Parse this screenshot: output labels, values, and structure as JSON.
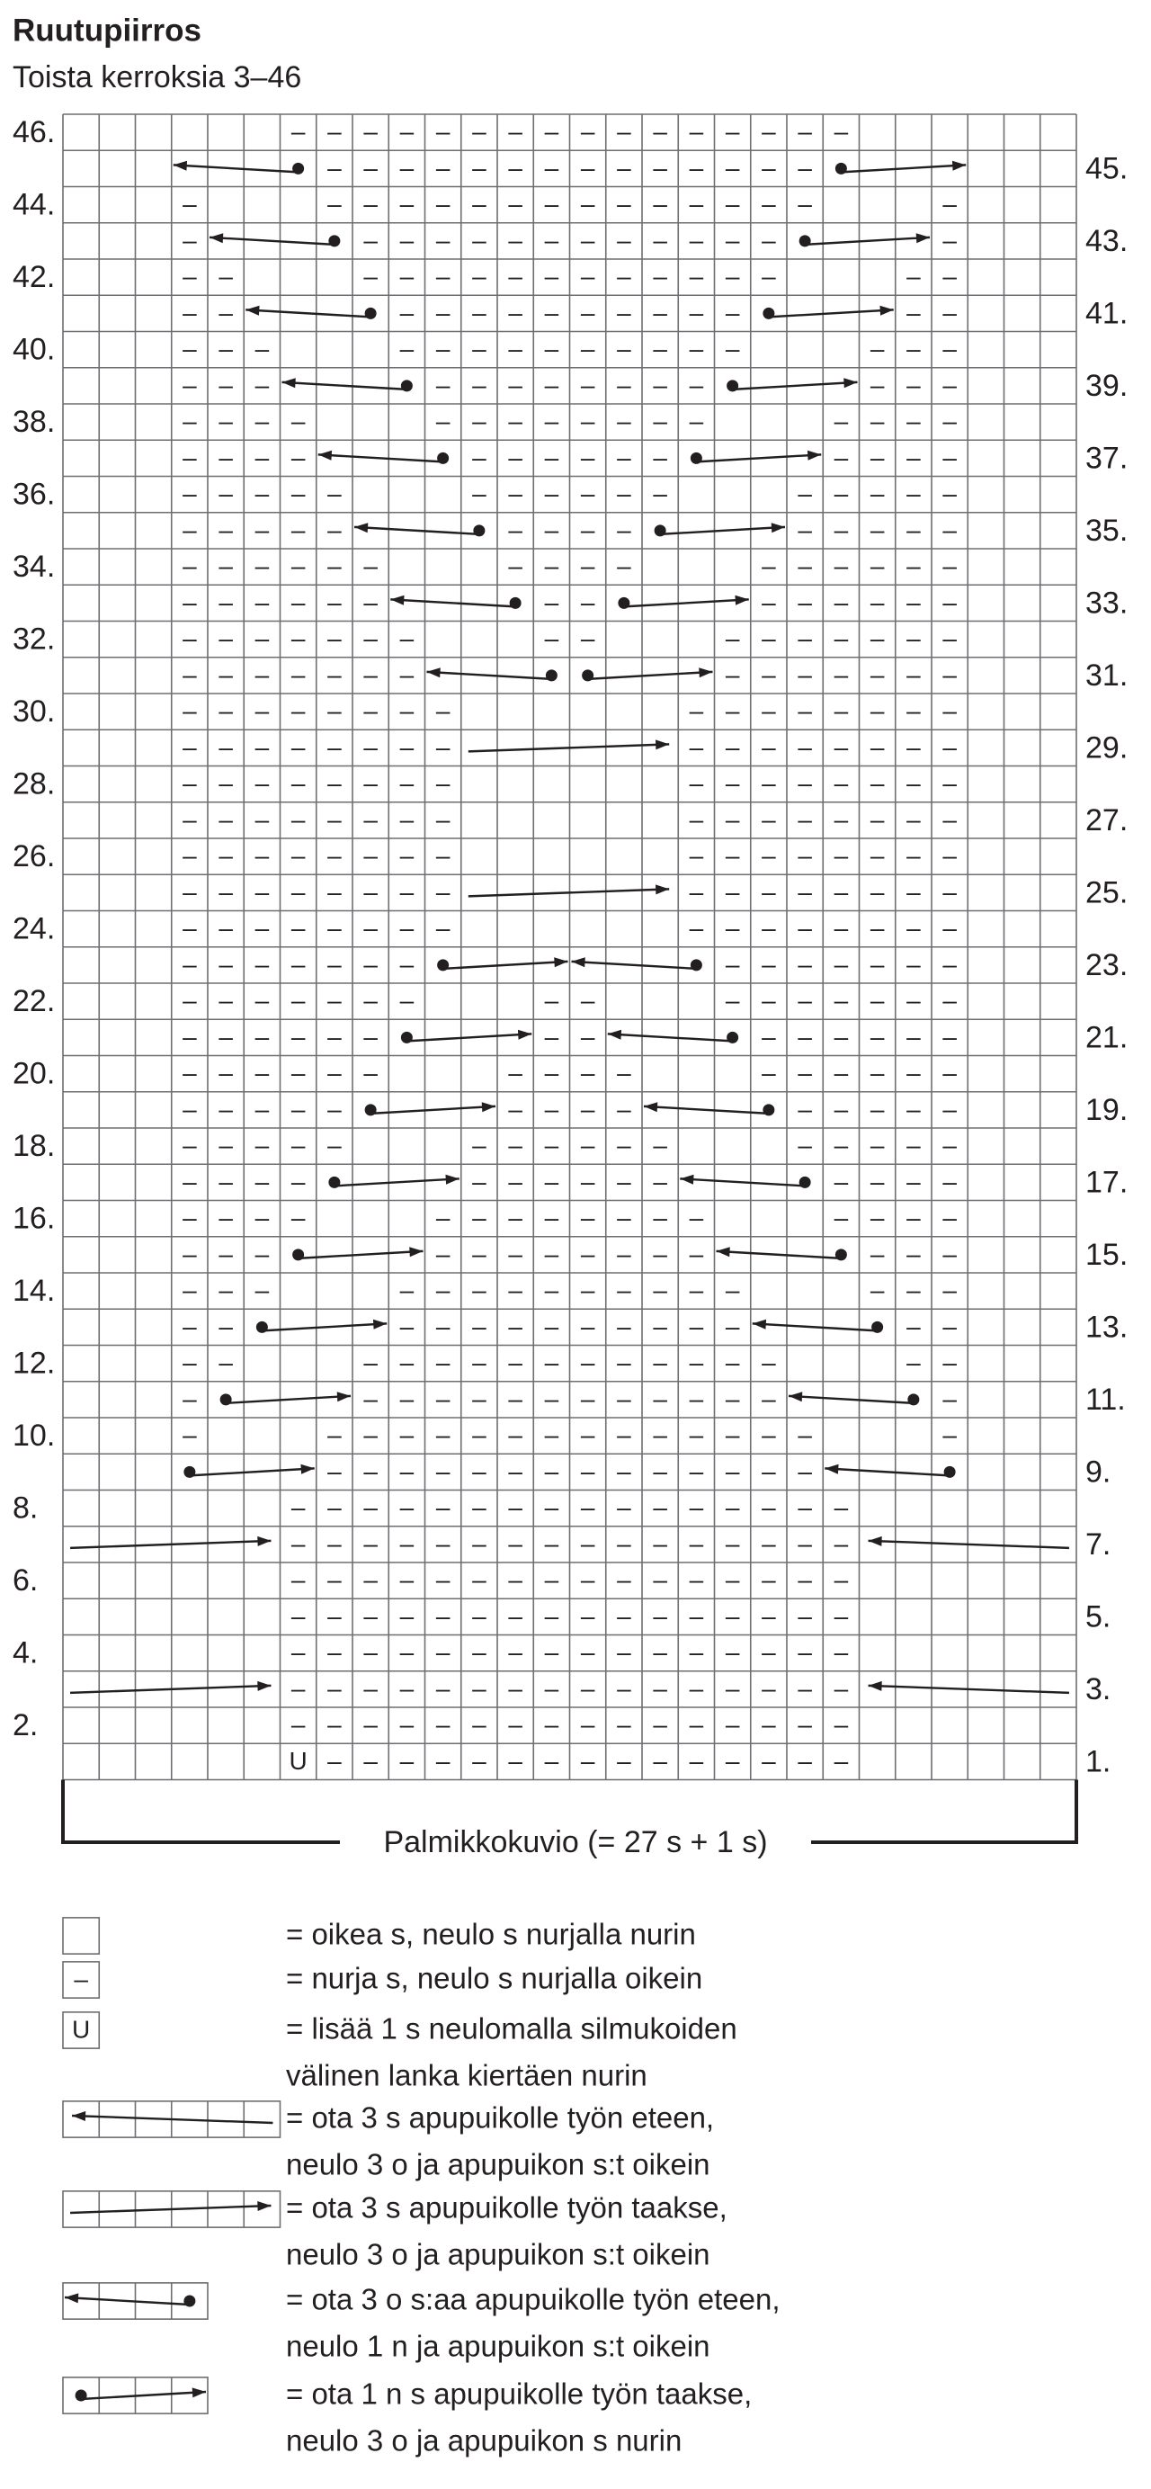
{
  "title": "Ruutupiirros",
  "subtitle": "Toista kerroksia 3–46",
  "chart": {
    "rows": [
      "      ––––––––––––––––      ",
      "       ––––––––––––––       ",
      "   –   ––––––––––––––   –   ",
      "   –    ––––––––––––    –   ",
      "   ––   ––––––––––––   ––   ",
      "   ––    ––––––––––    ––   ",
      "   –––   ––––––––––   –––   ",
      "   –––    ––––––––    –––   ",
      "   ––––   ––––––––   ––––   ",
      "   ––––    ––––––    ––––   ",
      "   –––––   ––––––   –––––   ",
      "   –––––    ––––    –––––   ",
      "   ––––––   ––––   ––––––   ",
      "   ––––––    ––    ––––––   ",
      "   –––––––   ––   –––––––   ",
      "   –––––––        –––––––   ",
      "   ––––––––      ––––––––   ",
      "   ––––––––      ––––––––   ",
      "   ––––––––      ––––––––   ",
      "   ––––––––      ––––––––   ",
      "   ––––––––      ––––––––   ",
      "   ––––––––      ––––––––   ",
      "   ––––––––      ––––––––   ",
      "   –––––––        –––––––   ",
      "   –––––––   ––   –––––––   ",
      "   ––––––    ––    ––––––   ",
      "   ––––––   ––––   ––––––   ",
      "   –––––    ––––    –––––   ",
      "   –––––   ––––––   –––––   ",
      "   ––––    ––––––    ––––   ",
      "   ––––   ––––––––   ––––   ",
      "   –––    ––––––––    –––   ",
      "   –––   ––––––––––   –––   ",
      "   ––    ––––––––––    ––   ",
      "   ––   ––––––––––––   ––   ",
      "   –    ––––––––––––    –   ",
      "   –   ––––––––––––––   –   ",
      "       ––––––––––––––       ",
      "      ––––––––––––––––      ",
      "      ––––––––––––––––      ",
      "      ––––––––––––––––      ",
      "      ––––––––––––––––      ",
      "      ––––––––––––––––      ",
      "      ––––––––––––––––      ",
      "      ––––––––––––––––      ",
      "      U–––––––––––––––      "
    ],
    "left_labels": [
      "46.",
      "44.",
      "42.",
      "40.",
      "38.",
      "36.",
      "34.",
      "32.",
      "30.",
      "28.",
      "26.",
      "24.",
      "22.",
      "20.",
      "18.",
      "16.",
      "14.",
      "12.",
      "10.",
      "8.",
      "6.",
      "4.",
      "2."
    ],
    "right_labels": [
      "45.",
      "43.",
      "41.",
      "39.",
      "37.",
      "35.",
      "33.",
      "31.",
      "29.",
      "27.",
      "25.",
      "23.",
      "21.",
      "19.",
      "17.",
      "15.",
      "13.",
      "11.",
      "9.",
      "7.",
      "5.",
      "3.",
      "1."
    ],
    "pattern_label": "Palmikkokuvio (= 27 s + 1 s)"
  },
  "legend": [
    {
      "lines": [
        "= oikea s, neulo s nurjalla nurin"
      ]
    },
    {
      "symbol": "–",
      "lines": [
        "= nurja s, neulo s nurjalla oikein"
      ]
    },
    {
      "symbol": "U",
      "lines": [
        "= lisää 1 s neulomalla silmukoiden",
        "välinen lanka kiertäen nurin"
      ]
    },
    {
      "lines": [
        "= ota 3 s apupuikolle työn eteen,",
        "neulo 3 o ja apupuikon s:t oikein"
      ]
    },
    {
      "lines": [
        "= ota 3 s apupuikolle työn taakse,",
        "neulo 3 o ja apupuikon s:t oikein"
      ]
    },
    {
      "lines": [
        "= ota 3 o s:aa apupuikolle työn eteen,",
        "neulo 1 n ja apupuikon s:t oikein"
      ]
    },
    {
      "lines": [
        "= ota 1 n s apupuikolle työn taakse,",
        "neulo 3 o ja apupuikon s nurin"
      ]
    }
  ]
}
